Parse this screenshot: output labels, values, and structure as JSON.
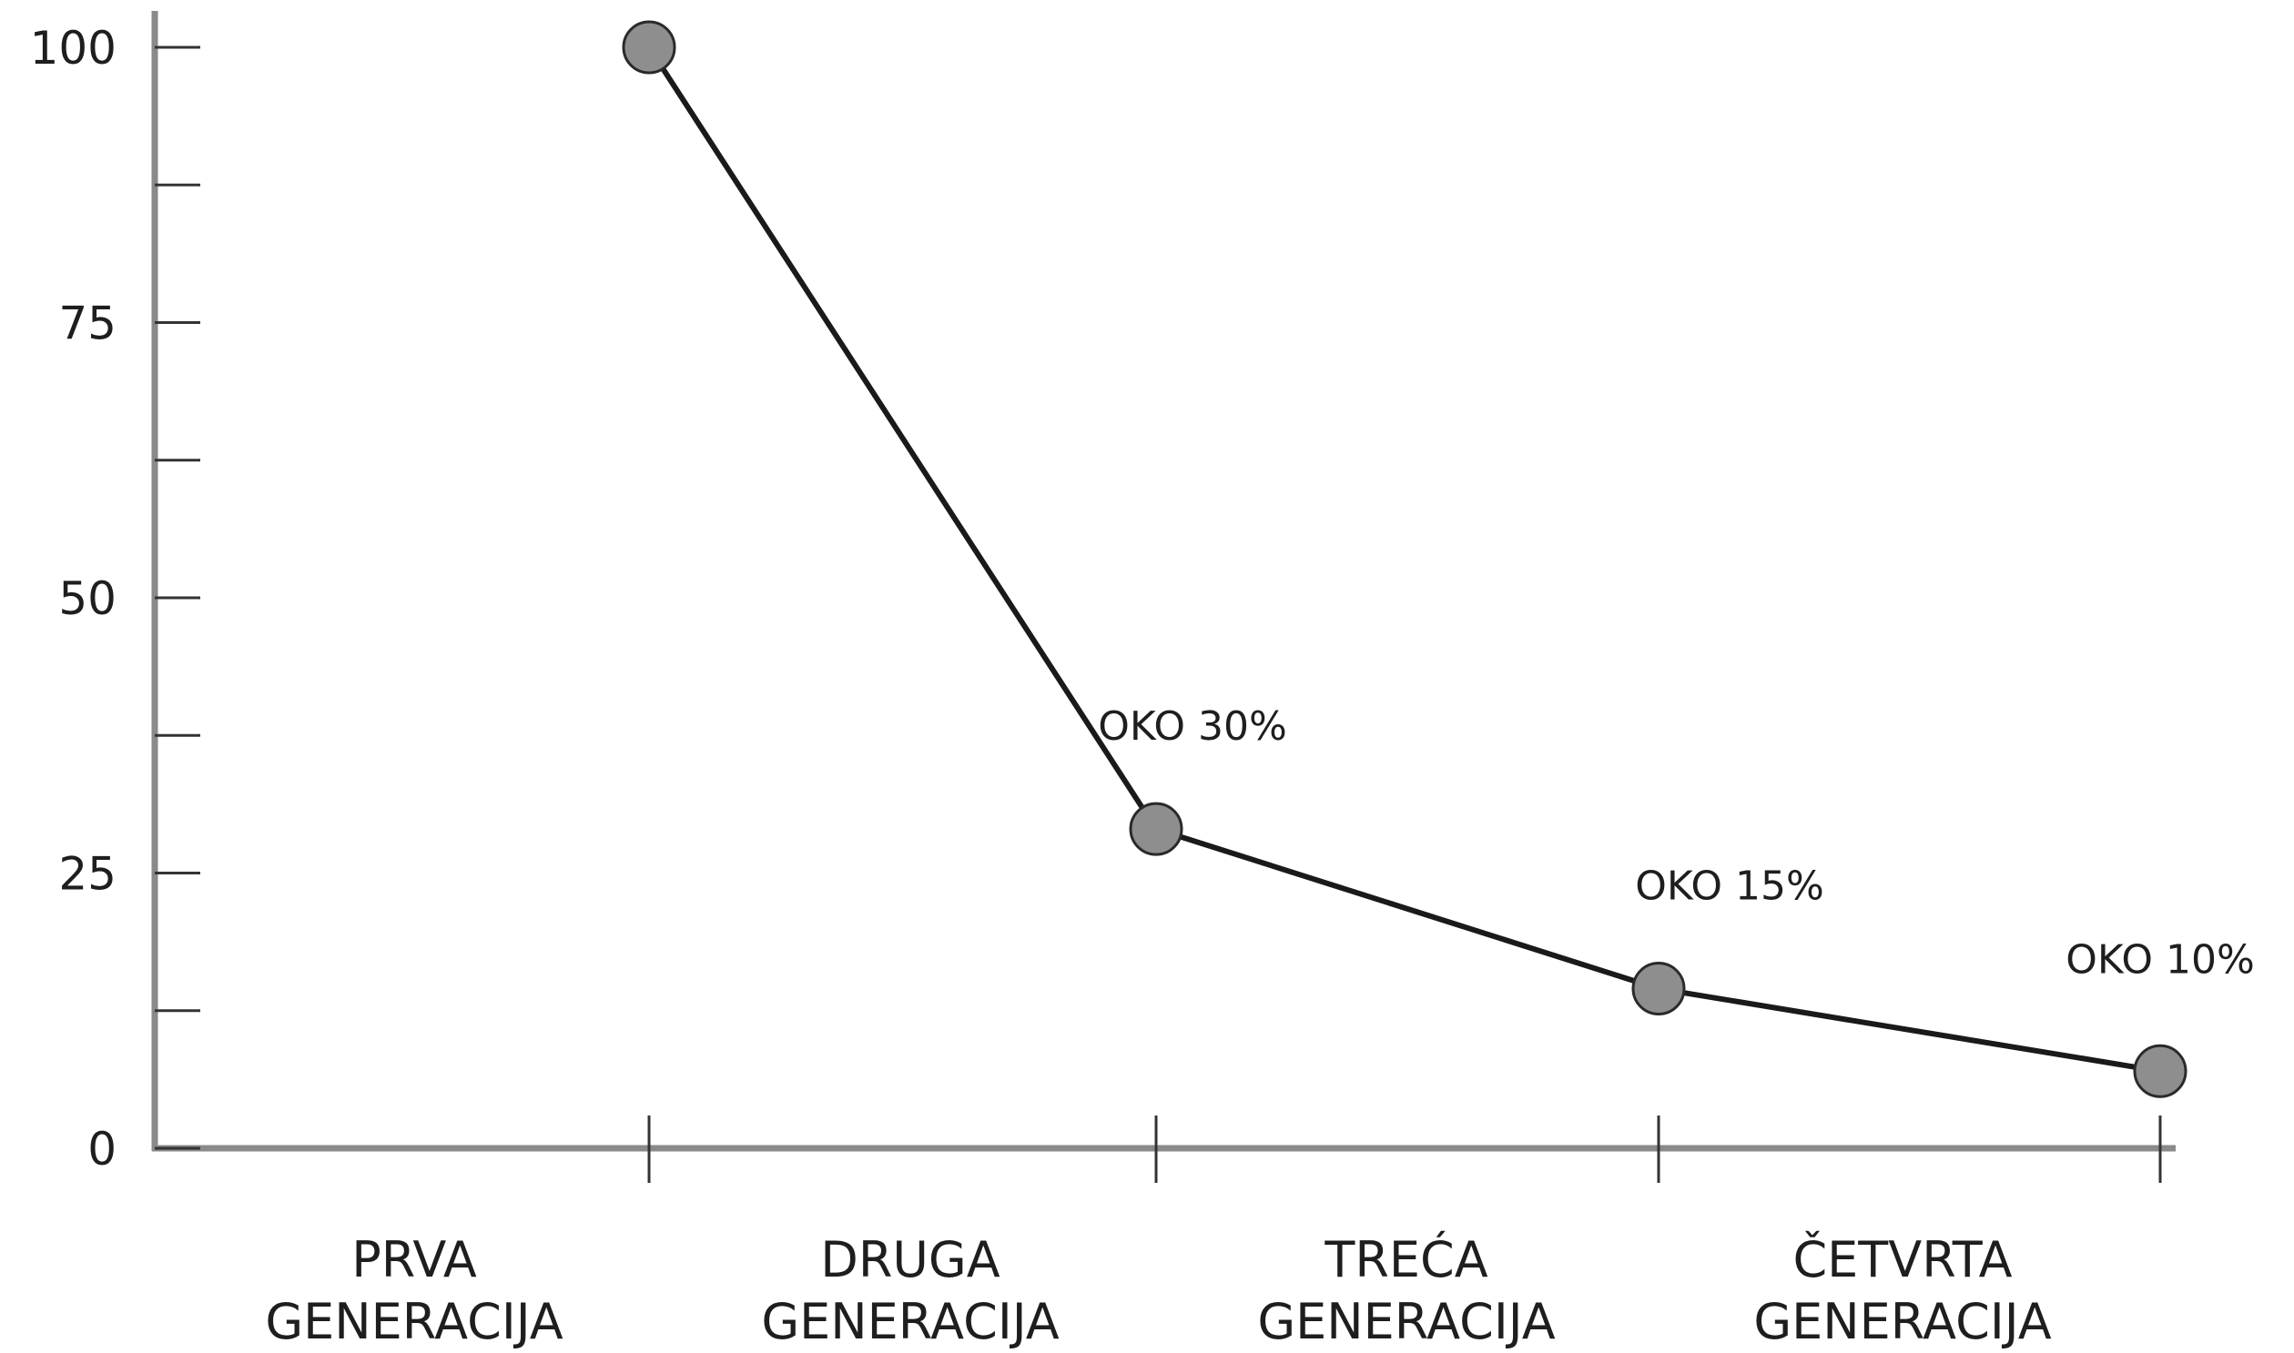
{
  "chart_data": {
    "type": "line",
    "title": "",
    "xlabel": "",
    "ylabel": "",
    "ylim": [
      0,
      100
    ],
    "yticks": [
      0,
      25,
      50,
      75,
      100
    ],
    "minor_ticks": [
      12.5,
      37.5,
      62.5,
      87.5
    ],
    "grid": false,
    "legend": "none",
    "categories": [
      {
        "line1": "PRVA",
        "line2": "GENERACIJA"
      },
      {
        "line1": "DRUGA",
        "line2": "GENERACIJA"
      },
      {
        "line1": "TREĆA",
        "line2": "GENERACIJA"
      },
      {
        "line1": "ČETVRTA",
        "line2": "GENERACIJA"
      }
    ],
    "series": [
      {
        "points": [
          {
            "category_index": 0,
            "value": 100,
            "label": ""
          },
          {
            "category_index": 1,
            "value": 29,
            "label": "OKO 30%"
          },
          {
            "category_index": 2,
            "value": 14.5,
            "label": "OKO 15%"
          },
          {
            "category_index": 3,
            "value": 7,
            "label": "OKO 10%"
          }
        ],
        "line_color": "#1a1a1a",
        "marker_color": "#8e8e8e"
      }
    ],
    "colors": {
      "axis": "#8a8a8a",
      "text": "#1e1e1e"
    }
  }
}
